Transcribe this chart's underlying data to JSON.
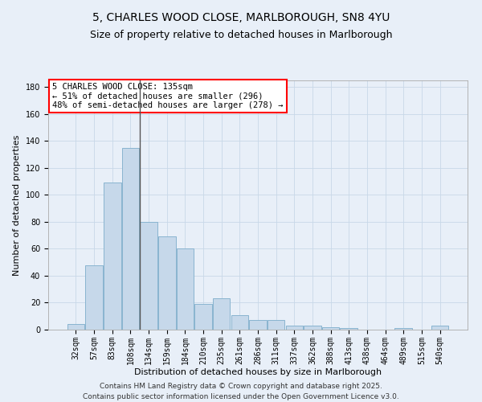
{
  "title_line1": "5, CHARLES WOOD CLOSE, MARLBOROUGH, SN8 4YU",
  "title_line2": "Size of property relative to detached houses in Marlborough",
  "xlabel": "Distribution of detached houses by size in Marlborough",
  "ylabel": "Number of detached properties",
  "bar_labels": [
    "32sqm",
    "57sqm",
    "83sqm",
    "108sqm",
    "134sqm",
    "159sqm",
    "184sqm",
    "210sqm",
    "235sqm",
    "261sqm",
    "286sqm",
    "311sqm",
    "337sqm",
    "362sqm",
    "388sqm",
    "413sqm",
    "438sqm",
    "464sqm",
    "489sqm",
    "515sqm",
    "540sqm"
  ],
  "bar_values": [
    4,
    48,
    109,
    135,
    80,
    69,
    60,
    19,
    23,
    11,
    7,
    7,
    3,
    3,
    2,
    1,
    0,
    0,
    1,
    0,
    3
  ],
  "bar_color": "#c6d8ea",
  "bar_edge_color": "#89b4d0",
  "vline_x_index": 3,
  "vline_color": "#555555",
  "annotation_text": "5 CHARLES WOOD CLOSE: 135sqm\n← 51% of detached houses are smaller (296)\n48% of semi-detached houses are larger (278) →",
  "annotation_box_color": "white",
  "annotation_box_edge": "red",
  "ylim": [
    0,
    185
  ],
  "yticks": [
    0,
    20,
    40,
    60,
    80,
    100,
    120,
    140,
    160,
    180
  ],
  "grid_color": "#c8d8e8",
  "background_color": "#e8eff8",
  "footer_line1": "Contains HM Land Registry data © Crown copyright and database right 2025.",
  "footer_line2": "Contains public sector information licensed under the Open Government Licence v3.0.",
  "title_fontsize": 10,
  "subtitle_fontsize": 9,
  "axis_label_fontsize": 8,
  "tick_fontsize": 7,
  "annotation_fontsize": 7.5,
  "footer_fontsize": 6.5
}
